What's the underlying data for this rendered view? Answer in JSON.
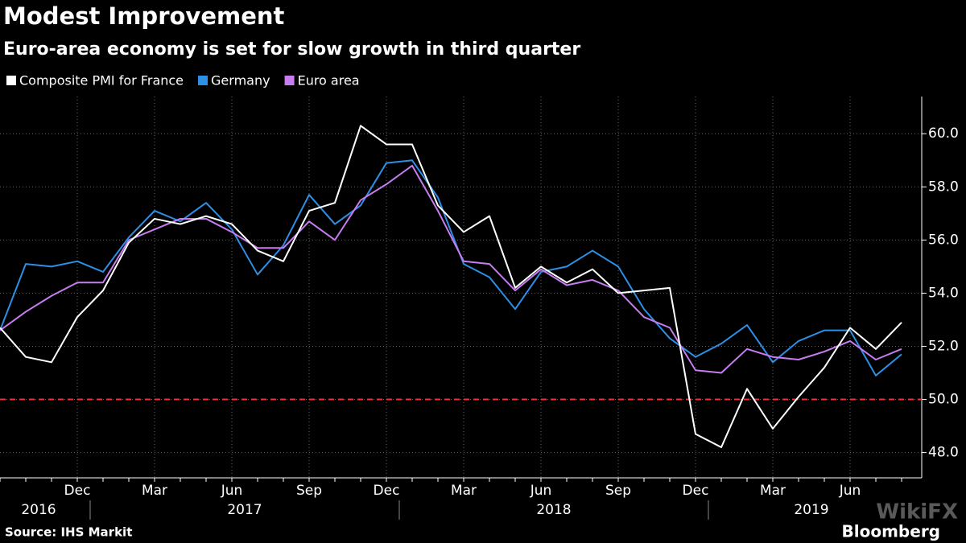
{
  "chart_data": {
    "type": "line",
    "title": "Modest Improvement",
    "subtitle": "Euro-area economy is set for slow growth in third quarter",
    "source": "Source: IHS Markit",
    "brand": "Bloomberg",
    "watermark": "WikiFX",
    "categories": [
      null,
      null,
      null,
      "Dec",
      null,
      null,
      "Mar",
      null,
      null,
      "Jun",
      null,
      null,
      "Sep",
      null,
      null,
      "Dec",
      null,
      null,
      "Mar",
      null,
      null,
      "Jun",
      null,
      null,
      "Sep",
      null,
      null,
      "Dec",
      null,
      null,
      "Mar",
      null,
      null,
      "Jun",
      null,
      null
    ],
    "year_labels": [
      "2016",
      "2017",
      "2018",
      "2019"
    ],
    "series": [
      {
        "name": "Composite PMI for France",
        "color": "#ffffff",
        "values": [
          52.7,
          51.6,
          51.4,
          53.1,
          54.1,
          55.9,
          56.8,
          56.6,
          56.9,
          56.6,
          55.6,
          55.2,
          57.1,
          57.4,
          60.3,
          59.6,
          59.6,
          57.3,
          56.3,
          56.9,
          54.2,
          55.0,
          54.4,
          54.9,
          54.0,
          54.1,
          54.2,
          48.7,
          48.2,
          50.4,
          48.9,
          50.1,
          51.2,
          52.7,
          51.9,
          52.9
        ]
      },
      {
        "name": "Germany",
        "color": "#2d8fe6",
        "values": [
          52.6,
          55.1,
          55.0,
          55.2,
          54.8,
          56.1,
          57.1,
          56.7,
          57.4,
          56.4,
          54.7,
          55.8,
          57.7,
          56.6,
          57.3,
          58.9,
          59.0,
          57.6,
          55.1,
          54.6,
          53.4,
          54.8,
          55.0,
          55.6,
          55.0,
          53.4,
          52.3,
          51.6,
          52.1,
          52.8,
          51.4,
          52.2,
          52.6,
          52.6,
          50.9,
          51.7
        ]
      },
      {
        "name": "Euro area",
        "color": "#c77cf0",
        "values": [
          52.6,
          53.3,
          53.9,
          54.4,
          54.4,
          56.0,
          56.4,
          56.8,
          56.8,
          56.3,
          55.7,
          55.7,
          56.7,
          56.0,
          57.5,
          58.1,
          58.8,
          57.1,
          55.2,
          55.1,
          54.1,
          54.9,
          54.3,
          54.5,
          54.1,
          53.1,
          52.7,
          51.1,
          51.0,
          51.9,
          51.6,
          51.5,
          51.8,
          52.2,
          51.5,
          51.9
        ]
      }
    ],
    "ylim": [
      47.05,
      61.4
    ],
    "yticks": [
      {
        "value": 48,
        "label": "48.0"
      },
      {
        "value": 50,
        "label": "50.0"
      },
      {
        "value": 52,
        "label": "52.0"
      },
      {
        "value": 54,
        "label": "54.0"
      },
      {
        "value": 56,
        "label": "56.0"
      },
      {
        "value": 58,
        "label": "58.0"
      },
      {
        "value": 60,
        "label": "60.0"
      }
    ],
    "reference_line": 50,
    "reference_color": "#e8333b",
    "grid": true
  }
}
